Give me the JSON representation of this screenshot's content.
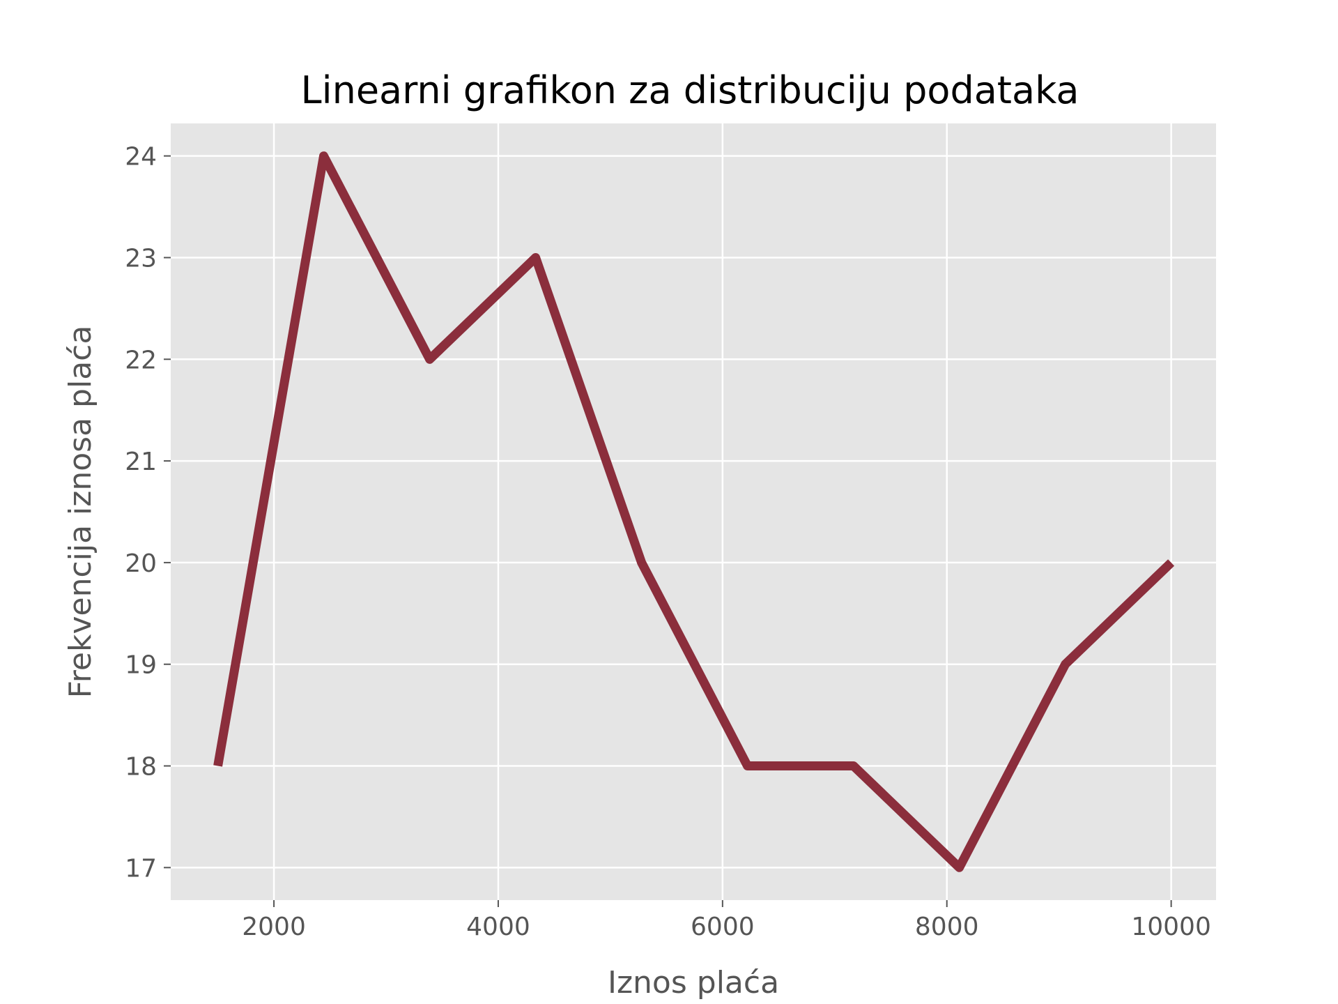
{
  "chart_data": {
    "type": "line",
    "title": "Linearni grafikon za distribuciju podataka",
    "xlabel": "Iznos plaća",
    "ylabel": "Frekvencija iznosa plaća",
    "xlim": [
      1080,
      10400
    ],
    "ylim": [
      16.68,
      24.32
    ],
    "xticks": [
      2000,
      4000,
      6000,
      8000,
      10000
    ],
    "yticks": [
      17,
      18,
      19,
      20,
      21,
      22,
      23,
      24
    ],
    "grid": true,
    "background": "#e5e5e5",
    "grid_color": "#ffffff",
    "series": [
      {
        "color": "#8b2e3c",
        "x": [
          1500,
          2444,
          3389,
          4333,
          5278,
          6222,
          7167,
          8111,
          9056,
          10000
        ],
        "y": [
          18,
          24,
          22,
          23,
          20,
          18,
          18,
          17,
          19,
          20
        ]
      }
    ]
  }
}
